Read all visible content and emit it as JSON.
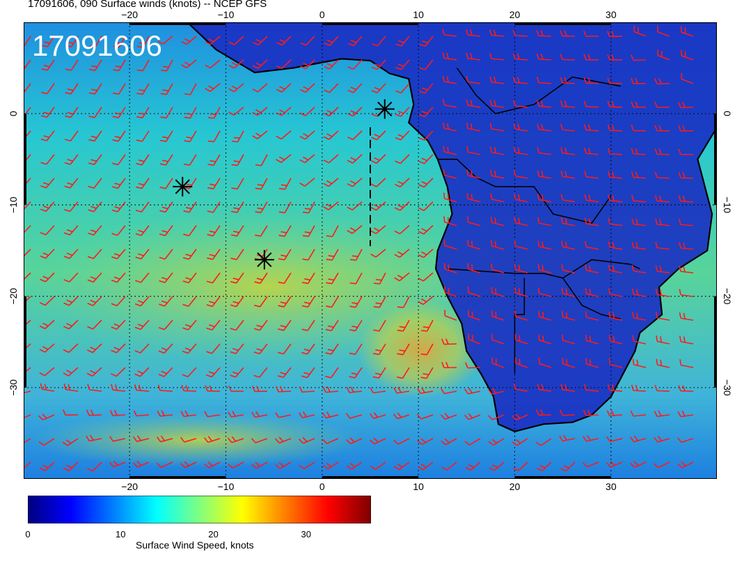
{
  "header": {
    "title": "17091606, 090 Surface winds (knots) -- NCEP GFS"
  },
  "map": {
    "stamp": "17091606",
    "lon_range": [
      -31,
      41
    ],
    "lat_range": [
      -40,
      10
    ],
    "lon_ticks": [
      -20,
      -10,
      0,
      10,
      20,
      30
    ],
    "lat_ticks": [
      0,
      -10,
      -20,
      -30
    ],
    "colors": {
      "barb": "#ff1a1a",
      "land_fill": "#1a2fc2",
      "coastline": "#000000",
      "grid": "#000000"
    },
    "markers": [
      {
        "lon": 6.5,
        "lat": 0.5
      },
      {
        "lon": -14.5,
        "lat": -8.0
      },
      {
        "lon": -6.0,
        "lat": -16.0
      }
    ],
    "dashed_track": [
      [
        5.0,
        -1.5
      ],
      [
        5.0,
        -14.5
      ]
    ]
  },
  "colorbar": {
    "label": "Surface Wind Speed, knots",
    "min": 0,
    "max": 37,
    "ticks": [
      "0",
      "10",
      "20",
      "30"
    ],
    "tick_values": [
      0,
      10,
      20,
      30
    ],
    "colors": [
      "#00007f",
      "#0000ff",
      "#007fff",
      "#00ffff",
      "#7fff7f",
      "#ffff00",
      "#ff7f00",
      "#ff0000",
      "#7f0000"
    ]
  }
}
